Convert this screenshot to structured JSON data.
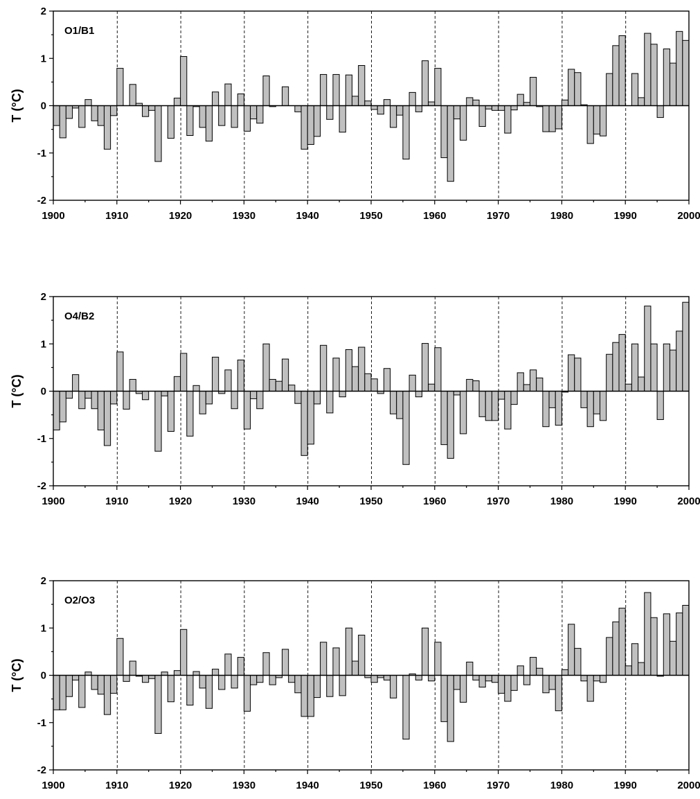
{
  "chart_data": [
    {
      "type": "bar",
      "label": "O1/B1",
      "ylabel": "T (°C)",
      "ylim": [
        -2,
        2
      ],
      "xlim": [
        1900,
        2000
      ],
      "yticks": [
        "-2",
        "-1",
        "0",
        "1",
        "2"
      ],
      "xticks": [
        "1900",
        "1910",
        "1920",
        "1930",
        "1940",
        "1950",
        "1960",
        "1970",
        "1980",
        "1990",
        "2000"
      ],
      "grid": "dashed vertical lines at decades",
      "bar_color": "#c0c0c0",
      "x_start": 1901,
      "values": [
        -0.42,
        -0.68,
        -0.27,
        -0.05,
        -0.46,
        0.13,
        -0.32,
        -0.42,
        -0.92,
        -0.21,
        0.79,
        0.0,
        0.45,
        0.05,
        -0.23,
        -0.1,
        -1.18,
        0.0,
        -0.69,
        0.16,
        1.04,
        -0.63,
        -0.02,
        -0.46,
        -0.75,
        0.29,
        -0.42,
        0.46,
        -0.46,
        0.25,
        -0.54,
        -0.28,
        -0.37,
        0.63,
        -0.02,
        0.0,
        0.4,
        0.0,
        -0.13,
        -0.92,
        -0.82,
        -0.65,
        0.66,
        -0.29,
        0.66,
        -0.56,
        0.65,
        0.2,
        0.85,
        0.1,
        -0.08,
        -0.18,
        0.13,
        -0.46,
        -0.2,
        -1.13,
        0.28,
        -0.13,
        0.95,
        0.08,
        0.79,
        -1.1,
        -1.6,
        -0.28,
        -0.73,
        0.17,
        0.12,
        -0.44,
        -0.07,
        -0.1,
        -0.1,
        -0.58,
        -0.09,
        0.24,
        0.07,
        0.6,
        -0.02,
        -0.55,
        -0.55,
        -0.49,
        0.12,
        0.77,
        0.7,
        0.02,
        -0.8,
        -0.6,
        -0.64,
        0.68,
        1.27,
        1.48,
        0.0,
        0.68,
        0.17,
        1.53,
        1.3,
        -0.25,
        1.2,
        0.9,
        1.57,
        1.38
      ]
    },
    {
      "type": "bar",
      "label": "O4/B2",
      "ylabel": "T (°C)",
      "ylim": [
        -2,
        2
      ],
      "xlim": [
        1900,
        2000
      ],
      "yticks": [
        "-2",
        "-1",
        "0",
        "1",
        "2"
      ],
      "xticks": [
        "1900",
        "1910",
        "1920",
        "1930",
        "1940",
        "1950",
        "1960",
        "1970",
        "1980",
        "1990",
        "2000"
      ],
      "grid": "dashed vertical lines at decades",
      "bar_color": "#c0c0c0",
      "x_start": 1901,
      "values": [
        -0.82,
        -0.65,
        -0.15,
        0.35,
        -0.37,
        -0.15,
        -0.37,
        -0.82,
        -1.15,
        -0.27,
        0.83,
        -0.38,
        0.25,
        -0.05,
        -0.18,
        0.0,
        -1.27,
        -0.1,
        -0.85,
        0.31,
        0.8,
        -0.95,
        0.12,
        -0.48,
        -0.27,
        0.72,
        -0.05,
        0.45,
        -0.37,
        0.66,
        -0.8,
        -0.16,
        -0.37,
        1.0,
        0.25,
        0.21,
        0.68,
        0.13,
        -0.26,
        -1.36,
        -1.12,
        -0.27,
        0.97,
        -0.46,
        0.7,
        -0.12,
        0.88,
        0.52,
        0.93,
        0.37,
        0.26,
        -0.05,
        0.48,
        -0.48,
        -0.58,
        -1.55,
        0.34,
        -0.12,
        1.01,
        0.15,
        0.92,
        -1.13,
        -1.42,
        -0.08,
        -0.9,
        0.25,
        0.22,
        -0.54,
        -0.62,
        -0.62,
        -0.17,
        -0.8,
        -0.28,
        0.39,
        0.14,
        0.45,
        0.28,
        -0.75,
        -0.35,
        -0.72,
        -0.02,
        0.77,
        0.7,
        -0.35,
        -0.75,
        -0.48,
        -0.62,
        0.78,
        1.03,
        1.2,
        0.15,
        1.0,
        0.3,
        1.8,
        1.0,
        -0.6,
        1.0,
        0.87,
        1.27,
        1.88
      ]
    },
    {
      "type": "bar",
      "label": "O2/O3",
      "ylabel": "T (°C)",
      "ylim": [
        -2,
        2
      ],
      "xlim": [
        1900,
        2000
      ],
      "yticks": [
        "-2",
        "-1",
        "0",
        "1",
        "2"
      ],
      "xticks": [
        "1900",
        "1910",
        "1920",
        "1930",
        "1940",
        "1950",
        "1960",
        "1970",
        "1980",
        "1990",
        "2000"
      ],
      "grid": "dashed vertical lines at decades",
      "bar_color": "#c0c0c0",
      "x_start": 1901,
      "values": [
        -0.73,
        -0.73,
        -0.45,
        -0.1,
        -0.68,
        0.07,
        -0.3,
        -0.4,
        -0.83,
        -0.38,
        0.78,
        -0.13,
        0.3,
        -0.02,
        -0.15,
        -0.07,
        -1.23,
        0.07,
        -0.56,
        0.1,
        0.97,
        -0.63,
        0.08,
        -0.27,
        -0.7,
        0.13,
        -0.3,
        0.45,
        -0.27,
        0.38,
        -0.76,
        -0.2,
        -0.15,
        0.48,
        -0.2,
        -0.05,
        0.55,
        -0.15,
        -0.37,
        -0.87,
        -0.87,
        -0.47,
        0.7,
        -0.45,
        0.58,
        -0.43,
        1.0,
        0.3,
        0.85,
        -0.05,
        -0.15,
        -0.05,
        -0.1,
        -0.48,
        0.0,
        -1.35,
        0.03,
        -0.1,
        1.0,
        -0.12,
        0.7,
        -0.98,
        -1.4,
        -0.3,
        -0.57,
        0.28,
        -0.1,
        -0.25,
        -0.12,
        -0.15,
        -0.38,
        -0.55,
        -0.32,
        0.2,
        -0.2,
        0.38,
        0.15,
        -0.37,
        -0.3,
        -0.75,
        0.12,
        1.08,
        0.57,
        -0.12,
        -0.55,
        -0.12,
        -0.15,
        0.8,
        1.13,
        1.42,
        0.2,
        0.67,
        0.27,
        1.75,
        1.22,
        -0.02,
        1.3,
        0.72,
        1.32,
        1.48
      ]
    }
  ]
}
